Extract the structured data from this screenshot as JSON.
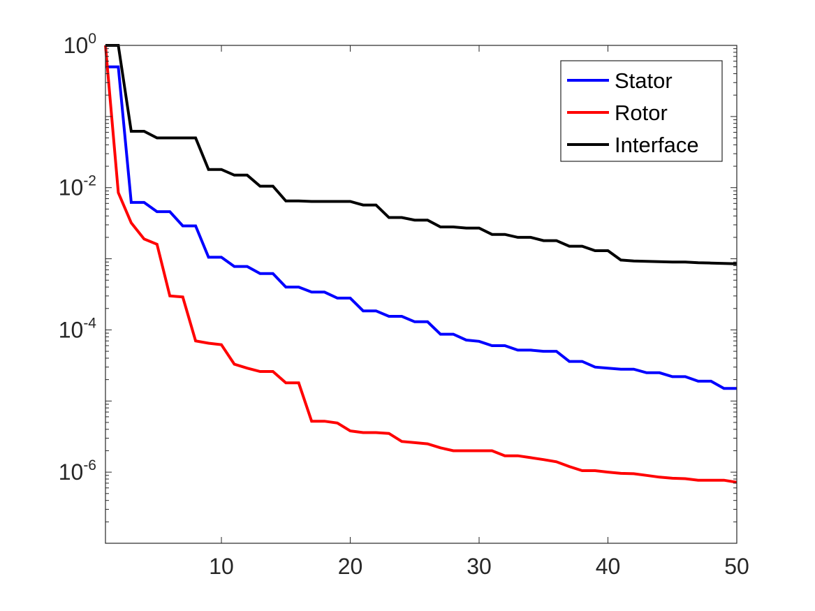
{
  "chart_data": {
    "type": "line",
    "title": "",
    "xlabel": "",
    "ylabel": "",
    "xlim": [
      1,
      50
    ],
    "ylim": [
      1e-07,
      1
    ],
    "yscale": "log",
    "grid": false,
    "legend_position": "top-right",
    "x_ticks": [
      {
        "value": 10,
        "label": "10"
      },
      {
        "value": 20,
        "label": "20"
      },
      {
        "value": 30,
        "label": "30"
      },
      {
        "value": 40,
        "label": "40"
      },
      {
        "value": 50,
        "label": "50"
      }
    ],
    "y_ticks": [
      {
        "value": 1,
        "base": "10",
        "exp": "0"
      },
      {
        "value": 0.01,
        "base": "10",
        "exp": "-2"
      },
      {
        "value": 0.0001,
        "base": "10",
        "exp": "-4"
      },
      {
        "value": 1e-06,
        "base": "10",
        "exp": "-6"
      }
    ],
    "x": [
      1,
      2,
      3,
      4,
      5,
      6,
      7,
      8,
      9,
      10,
      11,
      12,
      13,
      14,
      15,
      16,
      17,
      18,
      19,
      20,
      21,
      22,
      23,
      24,
      25,
      26,
      27,
      28,
      29,
      30,
      31,
      32,
      33,
      34,
      35,
      36,
      37,
      38,
      39,
      40,
      41,
      42,
      43,
      44,
      45,
      46,
      47,
      48,
      49,
      50
    ],
    "series": [
      {
        "name": "Stator",
        "color": "#0000ff",
        "values": [
          0.5,
          0.5,
          0.0062,
          0.0062,
          0.0046,
          0.0046,
          0.0029,
          0.0029,
          0.00105,
          0.00105,
          0.00078,
          0.00078,
          0.00062,
          0.00062,
          0.0004,
          0.0004,
          0.00034,
          0.00034,
          0.00028,
          0.00028,
          0.000185,
          0.000185,
          0.000155,
          0.000155,
          0.00013,
          0.00013,
          8.7e-05,
          8.7e-05,
          7.2e-05,
          6.9e-05,
          6e-05,
          6e-05,
          5.2e-05,
          5.2e-05,
          5e-05,
          5e-05,
          3.6e-05,
          3.6e-05,
          3e-05,
          2.9e-05,
          2.8e-05,
          2.8e-05,
          2.5e-05,
          2.5e-05,
          2.2e-05,
          2.2e-05,
          1.9e-05,
          1.9e-05,
          1.5e-05,
          1.5e-05
        ]
      },
      {
        "name": "Rotor",
        "color": "#ff0000",
        "values": [
          1,
          0.0085,
          0.0032,
          0.0019,
          0.0016,
          0.0003,
          0.00029,
          7e-05,
          6.5e-05,
          6.2e-05,
          3.3e-05,
          2.9e-05,
          2.6e-05,
          2.6e-05,
          1.8e-05,
          1.8e-05,
          5.2e-06,
          5.2e-06,
          4.9e-06,
          3.8e-06,
          3.6e-06,
          3.6e-06,
          3.5e-06,
          2.7e-06,
          2.6e-06,
          2.5e-06,
          2.2e-06,
          2e-06,
          2e-06,
          2e-06,
          2e-06,
          1.7e-06,
          1.7e-06,
          1.6e-06,
          1.5e-06,
          1.4e-06,
          1.2e-06,
          1.05e-06,
          1.05e-06,
          1e-06,
          9.6e-07,
          9.5e-07,
          9e-07,
          8.5e-07,
          8.2e-07,
          8.1e-07,
          7.7e-07,
          7.7e-07,
          7.7e-07,
          7.2e-07
        ]
      },
      {
        "name": "Interface",
        "color": "#000000",
        "values": [
          1,
          1,
          0.062,
          0.062,
          0.05,
          0.05,
          0.05,
          0.05,
          0.018,
          0.018,
          0.015,
          0.015,
          0.0105,
          0.0105,
          0.0065,
          0.0065,
          0.0064,
          0.0064,
          0.0064,
          0.0064,
          0.0057,
          0.0057,
          0.0038,
          0.0038,
          0.0035,
          0.0035,
          0.0028,
          0.0028,
          0.0027,
          0.0027,
          0.0022,
          0.0022,
          0.002,
          0.002,
          0.0018,
          0.0018,
          0.0015,
          0.0015,
          0.0013,
          0.0013,
          0.00096,
          0.00093,
          0.00092,
          0.00091,
          0.0009,
          0.0009,
          0.00088,
          0.00087,
          0.00086,
          0.00085
        ]
      }
    ]
  }
}
